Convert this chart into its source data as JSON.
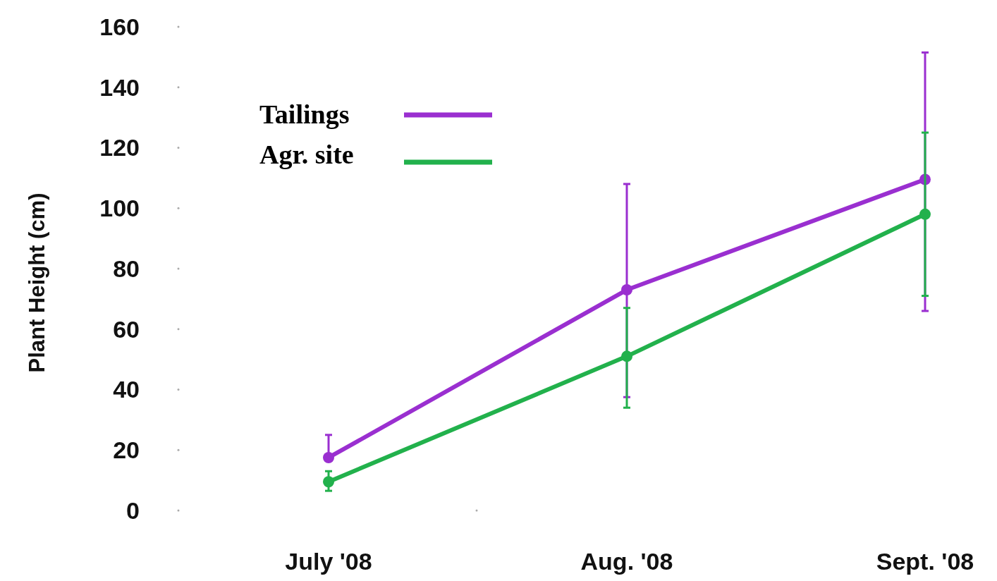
{
  "chart_data": {
    "type": "line",
    "ylabel": "Plant Height (cm)",
    "categories": [
      "July '08",
      "Aug. '08",
      "Sept. '08"
    ],
    "series": [
      {
        "name": "Tailings",
        "color": "#9a2fd0",
        "values": [
          17.5,
          73,
          109.5
        ],
        "errors": [
          [
            17.5,
            25
          ],
          [
            37.5,
            108
          ],
          [
            66,
            151.5
          ]
        ]
      },
      {
        "name": "Agr. site",
        "color": "#22b14c",
        "values": [
          9.5,
          51,
          98
        ],
        "errors": [
          [
            6.5,
            13
          ],
          [
            34,
            67
          ],
          [
            71,
            125
          ]
        ]
      }
    ],
    "ylim": [
      0,
      160
    ],
    "yticks": [
      0,
      20,
      40,
      60,
      80,
      100,
      120,
      140,
      160
    ],
    "grid": false,
    "legend": "top left",
    "marker": "circle",
    "line_style": "solid"
  }
}
